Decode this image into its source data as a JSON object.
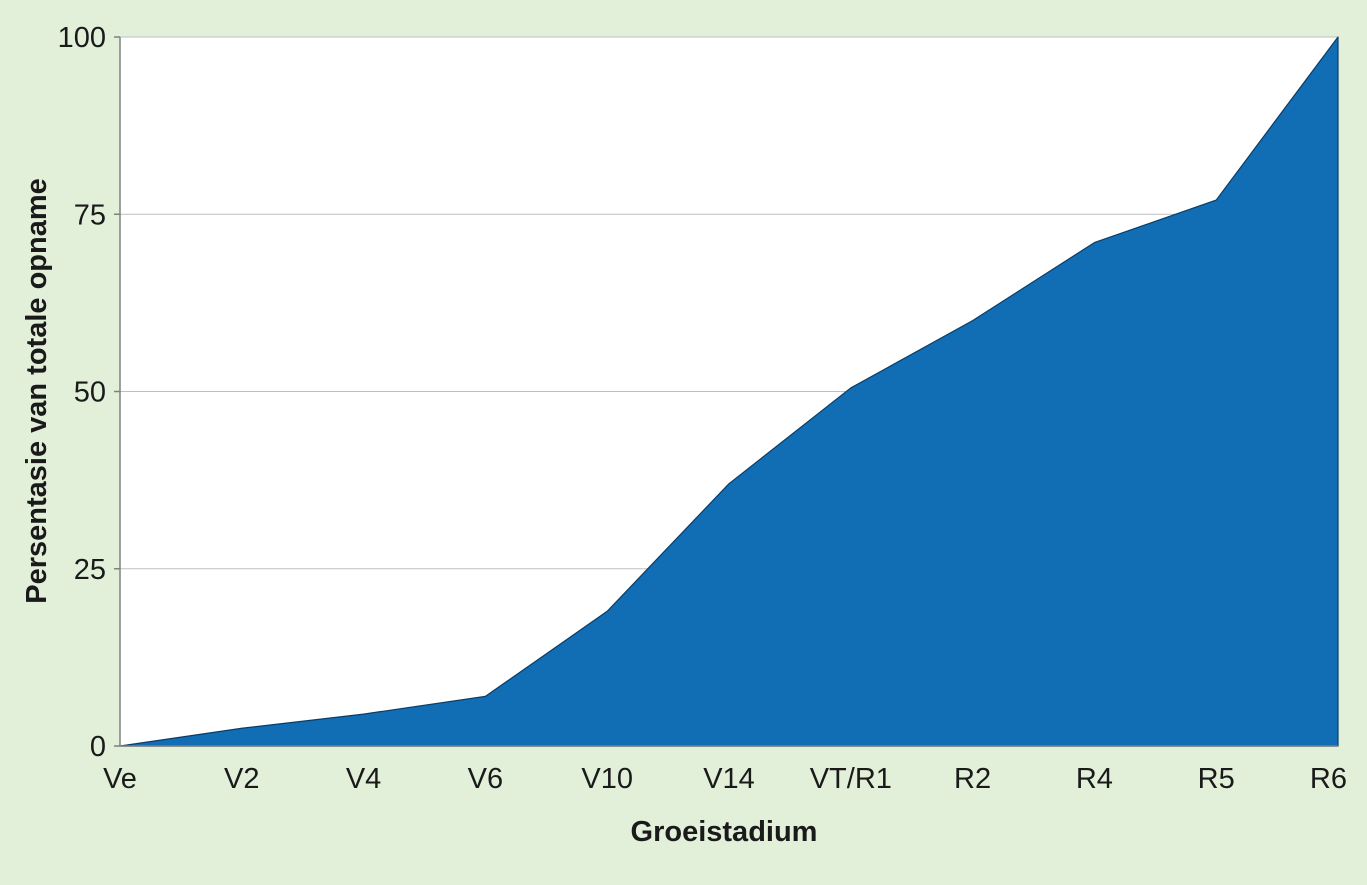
{
  "chart_data": {
    "type": "area",
    "title": "",
    "xlabel": "Groeistadium",
    "ylabel": "Persentasie van totale opname",
    "categories": [
      "Ve",
      "V2",
      "V4",
      "V6",
      "V10",
      "V14",
      "VT/R1",
      "R2",
      "R4",
      "R5",
      "R6"
    ],
    "series": [
      {
        "values": [
          0,
          2.5,
          4.5,
          7,
          19,
          37,
          50.5,
          60,
          71,
          77,
          100
        ]
      }
    ],
    "ylim": [
      0,
      100
    ],
    "yticks": [
      "0",
      "25",
      "50",
      "75",
      "100"
    ],
    "grid": "horizontal",
    "legend": "none",
    "colors": {
      "background": "#e2efd9",
      "plot_area": "#ffffff",
      "area_fill": "#116db4",
      "area_edge": "#0a3d66",
      "gridline": "#bfbfbf",
      "axis_line": "#808080"
    }
  }
}
